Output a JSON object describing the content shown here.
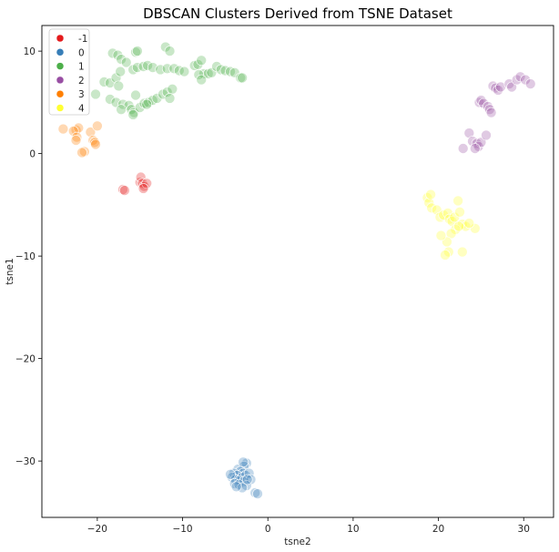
{
  "chart_data": {
    "type": "scatter",
    "title": "DBSCAN Clusters Derived from TSNE Dataset",
    "xlabel": "tsne2",
    "ylabel": "tsne1",
    "xlim": [
      -26.5,
      33.5
    ],
    "ylim": [
      -35.5,
      12.5
    ],
    "xticks": [
      -20,
      -10,
      0,
      10,
      20,
      30
    ],
    "yticks": [
      10,
      0,
      -10,
      -20,
      -30
    ],
    "grid": false,
    "legend_position": "top-left",
    "series": [
      {
        "name": "-1",
        "color": "#e41a1c",
        "points": [
          [
            -17,
            -3.5
          ],
          [
            -16.8,
            -3.6
          ],
          [
            -15,
            -2.8
          ],
          [
            -14.9,
            -2.3
          ],
          [
            -14.7,
            -2.9
          ],
          [
            -14.5,
            -3.2
          ],
          [
            -14.2,
            -2.9
          ],
          [
            -14.6,
            -3.4
          ]
        ]
      },
      {
        "name": "0",
        "color": "#377eb8",
        "points": [
          [
            -2.5,
            -30.2
          ],
          [
            -2.8,
            -30.5
          ],
          [
            -3.5,
            -30.8
          ],
          [
            -3.2,
            -31
          ],
          [
            -2.9,
            -31.2
          ],
          [
            -4,
            -31.2
          ],
          [
            -3.6,
            -31.4
          ],
          [
            -3,
            -31.6
          ],
          [
            -2.6,
            -31.4
          ],
          [
            -2.2,
            -31.2
          ],
          [
            -4.2,
            -31.6
          ],
          [
            -3.8,
            -31.8
          ],
          [
            -3.3,
            -31.9
          ],
          [
            -2.8,
            -32
          ],
          [
            -2,
            -31.8
          ],
          [
            -3.9,
            -32.2
          ],
          [
            -3.4,
            -32.3
          ],
          [
            -2.5,
            -32.4
          ],
          [
            -3,
            -32.6
          ],
          [
            -3.7,
            -32.5
          ],
          [
            -1.5,
            -33.1
          ],
          [
            -1.2,
            -33.2
          ],
          [
            -2.9,
            -30.1
          ],
          [
            -2.4,
            -31.8
          ],
          [
            -4.4,
            -31.3
          ]
        ]
      },
      {
        "name": "1",
        "color": "#4daf4a",
        "points": [
          [
            -18.2,
            9.8
          ],
          [
            -17.6,
            9.6
          ],
          [
            -17.2,
            9.2
          ],
          [
            -16.6,
            8.9
          ],
          [
            -15.5,
            9.9
          ],
          [
            -15.3,
            10
          ],
          [
            -12,
            10.4
          ],
          [
            -11.5,
            10
          ],
          [
            -19.2,
            7
          ],
          [
            -18.5,
            6.9
          ],
          [
            -17.8,
            7.4
          ],
          [
            -17.3,
            8
          ],
          [
            -17.5,
            6.6
          ],
          [
            -15.8,
            8.2
          ],
          [
            -15.3,
            8.4
          ],
          [
            -14.6,
            8.5
          ],
          [
            -14.1,
            8.6
          ],
          [
            -13.5,
            8.4
          ],
          [
            -12.6,
            8.2
          ],
          [
            -11.8,
            8.3
          ],
          [
            -11,
            8.3
          ],
          [
            -10.4,
            8.1
          ],
          [
            -9.8,
            8
          ],
          [
            -8.6,
            8.6
          ],
          [
            -8.2,
            8.7
          ],
          [
            -7.8,
            9.1
          ],
          [
            -7.5,
            7.8
          ],
          [
            -7,
            7.8
          ],
          [
            -6.6,
            7.9
          ],
          [
            -8.1,
            7.7
          ],
          [
            -7.8,
            7.2
          ],
          [
            -6,
            8.5
          ],
          [
            -5.5,
            8.2
          ],
          [
            -5,
            8.1
          ],
          [
            -4.4,
            8
          ],
          [
            -3.9,
            7.9
          ],
          [
            -3.2,
            7.4
          ],
          [
            -3,
            7.4
          ],
          [
            -20.2,
            5.8
          ],
          [
            -18.5,
            5.3
          ],
          [
            -17.8,
            5
          ],
          [
            -17,
            4.8
          ],
          [
            -16.3,
            4.7
          ],
          [
            -16,
            4.3
          ],
          [
            -15.7,
            4
          ],
          [
            -15.5,
            5.7
          ],
          [
            -15,
            4.5
          ],
          [
            -14.5,
            4.9
          ],
          [
            -14,
            5
          ],
          [
            -13.5,
            5.2
          ],
          [
            -13,
            5.4
          ],
          [
            -12.3,
            5.8
          ],
          [
            -11.8,
            6
          ],
          [
            -11.2,
            6.3
          ],
          [
            -11.5,
            5.4
          ],
          [
            -15.8,
            3.8
          ],
          [
            -17.2,
            4.3
          ],
          [
            -14.2,
            4.8
          ]
        ]
      },
      {
        "name": "2",
        "color": "#984ea3",
        "points": [
          [
            24.8,
            5
          ],
          [
            25,
            5.2
          ],
          [
            25.3,
            4.9
          ],
          [
            25.8,
            4.6
          ],
          [
            26,
            4.3
          ],
          [
            26.2,
            4
          ],
          [
            26.4,
            6.6
          ],
          [
            26.7,
            6.4
          ],
          [
            27,
            6.2
          ],
          [
            27.3,
            6.5
          ],
          [
            28.3,
            6.8
          ],
          [
            28.6,
            6.5
          ],
          [
            29.2,
            7.2
          ],
          [
            29.6,
            7.5
          ],
          [
            30.2,
            7.2
          ],
          [
            30.8,
            6.8
          ],
          [
            22.9,
            0.5
          ],
          [
            23.6,
            2
          ],
          [
            24,
            1.2
          ],
          [
            24.5,
            1
          ],
          [
            24.7,
            0.7
          ],
          [
            25,
            1.1
          ],
          [
            24.3,
            0.5
          ],
          [
            25.6,
            1.8
          ]
        ]
      },
      {
        "name": "3",
        "color": "#ff7f00",
        "points": [
          [
            -24,
            2.4
          ],
          [
            -22.5,
            2.3
          ],
          [
            -22.2,
            2.5
          ],
          [
            -22.8,
            2.2
          ],
          [
            -22.4,
            1.6
          ],
          [
            -22.5,
            1.3
          ],
          [
            -21.5,
            0.2
          ],
          [
            -21.8,
            0.1
          ],
          [
            -20.8,
            2.1
          ],
          [
            -20.5,
            1.3
          ],
          [
            -20.3,
            1.1
          ],
          [
            -20.2,
            0.9
          ],
          [
            -20,
            2.7
          ]
        ]
      },
      {
        "name": "4",
        "color": "#ffff33",
        "points": [
          [
            18.7,
            -4.3
          ],
          [
            18.9,
            -4.8
          ],
          [
            19.1,
            -4
          ],
          [
            19.2,
            -5.3
          ],
          [
            19.8,
            -5.5
          ],
          [
            20.2,
            -6.2
          ],
          [
            20.6,
            -6
          ],
          [
            21.1,
            -5.8
          ],
          [
            21.3,
            -6.4
          ],
          [
            21.6,
            -6.6
          ],
          [
            21.9,
            -6.2
          ],
          [
            22.3,
            -4.6
          ],
          [
            22.5,
            -5.7
          ],
          [
            22.8,
            -6.9
          ],
          [
            23.2,
            -7.1
          ],
          [
            22,
            -7.4
          ],
          [
            21.5,
            -7.8
          ],
          [
            21.2,
            -9.6
          ],
          [
            20.8,
            -9.9
          ],
          [
            22.8,
            -9.6
          ],
          [
            24.3,
            -7.3
          ],
          [
            21,
            -8.6
          ],
          [
            20.3,
            -8
          ],
          [
            23.6,
            -6.8
          ],
          [
            22.4,
            -7.1
          ]
        ]
      }
    ],
    "legend": [
      "-1",
      "0",
      "1",
      "2",
      "3",
      "4"
    ]
  }
}
